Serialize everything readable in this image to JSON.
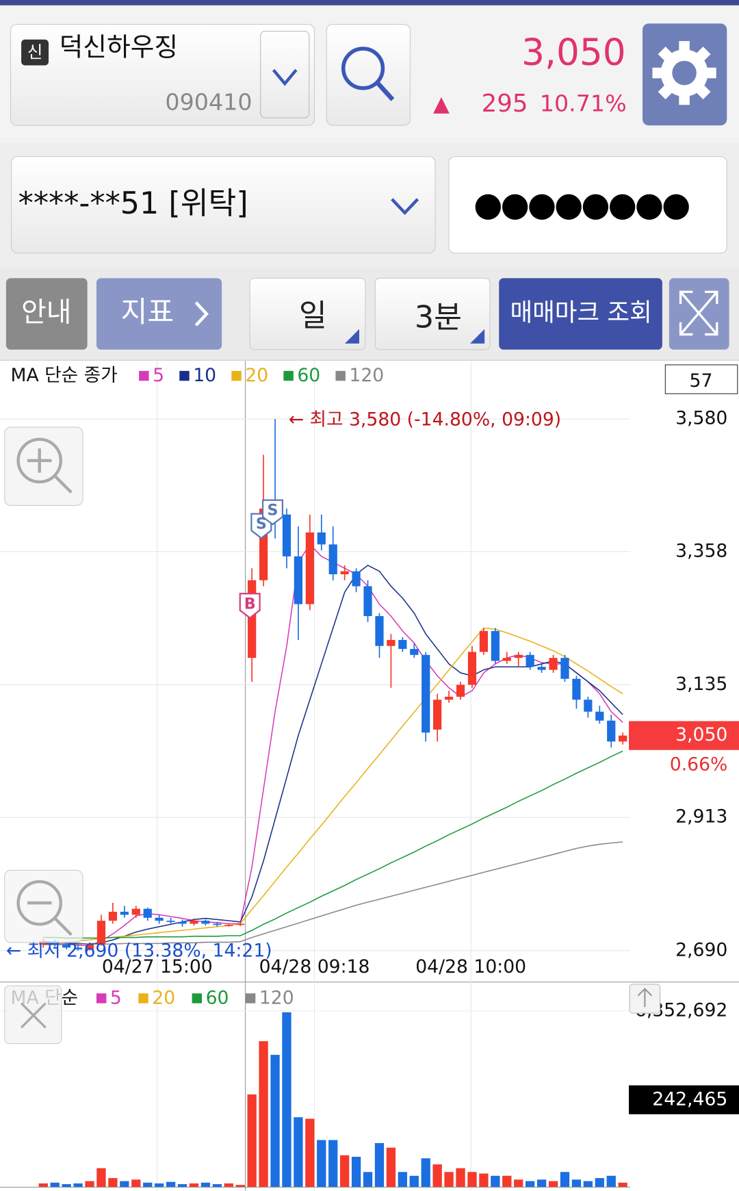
{
  "header": {
    "badge": "신",
    "name": "덕신하우징",
    "code": "090410",
    "price": "3,050",
    "arrow": "▲",
    "change": "295",
    "change_rate": "10.71%"
  },
  "account": {
    "number": "****-**51 [위탁]",
    "password": "●●●●●●●●"
  },
  "toolbar": [
    "안내",
    "지표",
    "일",
    "3분",
    "매매마크 조회"
  ],
  "chart_data": [
    {
      "type": "candlestick",
      "title": "MA 단순 종가",
      "count_label": "57",
      "up_color": "#f5392b",
      "down_color": "#1b6fe0",
      "open": [
        2700,
        2705,
        2700,
        2695,
        2692,
        2700,
        2740,
        2755,
        2750,
        2760,
        2745,
        2740,
        2738,
        2735,
        2740,
        2735,
        2733,
        2733,
        3180,
        3310,
        3430,
        3420,
        3350,
        3270,
        3390,
        3370,
        3320,
        3325,
        3300,
        3250,
        3200,
        3210,
        3195,
        3185,
        3060,
        3110,
        3115,
        3135,
        3190,
        3225,
        3175,
        3180,
        3185,
        3165,
        3160,
        3180,
        3145,
        3110,
        3090,
        3075,
        3040
      ],
      "high": [
        2710,
        2708,
        2703,
        2700,
        2704,
        2750,
        2770,
        2765,
        2765,
        2762,
        2750,
        2745,
        2742,
        2744,
        2742,
        2738,
        2736,
        2738,
        3330,
        3520,
        3580,
        3430,
        3400,
        3420,
        3420,
        3400,
        3335,
        3330,
        3310,
        3255,
        3220,
        3215,
        3205,
        3190,
        3120,
        3125,
        3140,
        3200,
        3230,
        3230,
        3190,
        3190,
        3190,
        3170,
        3185,
        3185,
        3150,
        3115,
        3100,
        3085,
        3055
      ],
      "low": [
        2695,
        2696,
        2692,
        2690,
        2690,
        2698,
        2735,
        2745,
        2745,
        2740,
        2735,
        2733,
        2730,
        2732,
        2732,
        2730,
        2730,
        2731,
        3140,
        3300,
        3380,
        3330,
        3210,
        3260,
        3360,
        3310,
        3310,
        3290,
        3240,
        3180,
        3130,
        3190,
        3180,
        3040,
        3040,
        3105,
        3110,
        3130,
        3185,
        3170,
        3170,
        3165,
        3160,
        3155,
        3155,
        3140,
        3095,
        3080,
        3070,
        3030,
        3035
      ],
      "close": [
        2705,
        2700,
        2695,
        2692,
        2700,
        2740,
        2755,
        2750,
        2760,
        2745,
        2740,
        2738,
        2735,
        2740,
        2735,
        2733,
        2733,
        2735,
        3310,
        3430,
        3420,
        3350,
        3270,
        3390,
        3370,
        3320,
        3325,
        3300,
        3250,
        3200,
        3210,
        3195,
        3185,
        3055,
        3110,
        3115,
        3135,
        3190,
        3225,
        3175,
        3180,
        3185,
        3165,
        3160,
        3180,
        3145,
        3110,
        3090,
        3075,
        3040,
        3050
      ],
      "series": [
        {
          "name": "5",
          "color": "#d63cb8",
          "values": [
            2702,
            2702,
            2701,
            2699,
            2698,
            2706,
            2718,
            2732,
            2748,
            2752,
            2750,
            2747,
            2744,
            2740,
            2738,
            2737,
            2735,
            2735,
            2830,
            2960,
            3090,
            3200,
            3340,
            3370,
            3350,
            3340,
            3330,
            3320,
            3300,
            3270,
            3250,
            3225,
            3205,
            3175,
            3150,
            3130,
            3115,
            3125,
            3155,
            3170,
            3180,
            3185,
            3180,
            3172,
            3170,
            3170,
            3155,
            3140,
            3120,
            3090,
            3072
          ]
        },
        {
          "name": "10",
          "color": "#1a2f8a",
          "values": [
            2705,
            2704,
            2703,
            2702,
            2701,
            2703,
            2708,
            2714,
            2721,
            2726,
            2730,
            2734,
            2738,
            2742,
            2744,
            2742,
            2740,
            2738,
            2780,
            2840,
            2910,
            2980,
            3050,
            3110,
            3170,
            3230,
            3290,
            3320,
            3335,
            3325,
            3300,
            3280,
            3255,
            3220,
            3195,
            3170,
            3155,
            3150,
            3160,
            3165,
            3165,
            3165,
            3165,
            3170,
            3175,
            3170,
            3155,
            3140,
            3125,
            3105,
            3085
          ]
        },
        {
          "name": "20",
          "color": "#e8b21a",
          "values": [
            2700,
            2702,
            2704,
            2706,
            2708,
            2710,
            2712,
            2714,
            2716,
            2718,
            2720,
            2722,
            2724,
            2726,
            2728,
            2730,
            2732,
            2735,
            2759,
            2782,
            2806,
            2830,
            2853,
            2877,
            2900,
            2924,
            2948,
            2971,
            2995,
            3018,
            3042,
            3066,
            3089,
            3113,
            3136,
            3160,
            3184,
            3207,
            3230,
            3228,
            3222,
            3215,
            3208,
            3200,
            3192,
            3182,
            3170,
            3158,
            3145,
            3132,
            3120
          ]
        },
        {
          "name": "60",
          "color": "#1c9a3c",
          "values": [
            2712,
            2712,
            2711,
            2711,
            2711,
            2711,
            2712,
            2712,
            2712,
            2713,
            2713,
            2713,
            2713,
            2714,
            2714,
            2714,
            2715,
            2715,
            2724,
            2734,
            2743,
            2753,
            2762,
            2771,
            2781,
            2790,
            2799,
            2809,
            2818,
            2827,
            2837,
            2846,
            2855,
            2865,
            2874,
            2884,
            2893,
            2902,
            2912,
            2921,
            2930,
            2940,
            2949,
            2958,
            2968,
            2977,
            2987,
            2996,
            3005,
            3015,
            3024
          ]
        },
        {
          "name": "120",
          "color": "#888888",
          "values": [
            2700,
            2700,
            2700,
            2701,
            2701,
            2701,
            2701,
            2702,
            2702,
            2702,
            2702,
            2703,
            2703,
            2703,
            2704,
            2704,
            2704,
            2705,
            2712,
            2718,
            2724,
            2730,
            2736,
            2742,
            2748,
            2754,
            2760,
            2766,
            2771,
            2776,
            2781,
            2786,
            2791,
            2796,
            2801,
            2806,
            2811,
            2816,
            2821,
            2826,
            2831,
            2836,
            2841,
            2846,
            2851,
            2856,
            2861,
            2865,
            2868,
            2870,
            2872
          ]
        }
      ],
      "ylim": [
        2640,
        3677
      ],
      "yticks": [
        {
          "value": 3580,
          "label": "3,580"
        },
        {
          "value": 3358,
          "label": "3,358"
        },
        {
          "value": 3135,
          "label": "3,135"
        },
        {
          "value": 2913,
          "label": "2,913"
        },
        {
          "value": 2690,
          "label": "2,690"
        }
      ],
      "x_labels": [
        "04/27 15:00",
        "04/28 09:18",
        "04/28 10:00"
      ],
      "high_annotation": "← 최고 3,580 (-14.80%, 09:09)",
      "low_annotation": "← 최저 2,690 (13.38%, 14:21)",
      "current_price": {
        "value": 3050,
        "label": "3,050"
      },
      "current_rate": "0.66%",
      "trade_marks": [
        {
          "label": "B",
          "index": 18
        },
        {
          "label": "S",
          "index": 19
        },
        {
          "label": "S",
          "index": 20
        }
      ]
    },
    {
      "type": "bar",
      "title": "MA 단순",
      "legend": [
        {
          "name": "5",
          "color": "#d63cb8"
        },
        {
          "name": "20",
          "color": "#e8b21a"
        },
        {
          "name": "60",
          "color": "#1c9a3c"
        },
        {
          "name": "120",
          "color": "#888888"
        }
      ],
      "values": [
        137000,
        164000,
        110000,
        137000,
        219000,
        685000,
        329000,
        219000,
        274000,
        164000,
        137000,
        192000,
        110000,
        137000,
        164000,
        110000,
        137000,
        82000,
        3343000,
        5261000,
        4768000,
        6302000,
        2521000,
        2466000,
        1699000,
        1699000,
        1151000,
        1096000,
        548000,
        1589000,
        1425000,
        548000,
        411000,
        1041000,
        822000,
        548000,
        685000,
        548000,
        493000,
        411000,
        411000,
        274000,
        219000,
        274000,
        219000,
        548000,
        274000,
        219000,
        329000,
        411000,
        164000
      ],
      "ylim": [
        0,
        7311000
      ],
      "yticks": [
        {
          "value": 6352692,
          "label": "6,352,692"
        }
      ],
      "current_label": "242,465"
    }
  ]
}
